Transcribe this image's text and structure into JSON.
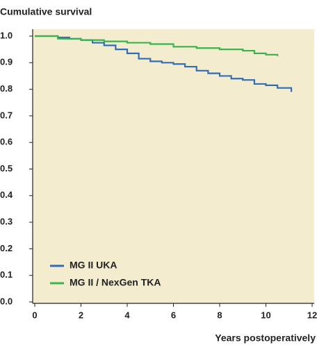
{
  "chart_data": {
    "type": "step",
    "ylabel": "Cumulative survival",
    "xlabel": "Years postoperatively",
    "xlim": [
      0,
      12
    ],
    "xticks": [
      0,
      2,
      4,
      6,
      8,
      10,
      12
    ],
    "ylim": [
      0,
      1
    ],
    "yticks": [
      {
        "value": 0,
        "label": "0.0"
      },
      0.1,
      0.2,
      0.3,
      0.4,
      0.5,
      0.6,
      0.7,
      0.8,
      0.9,
      {
        "value": 1,
        "label": "1.0"
      }
    ],
    "legend": "lower left",
    "background": "#f4ecce",
    "series": [
      {
        "name": "MG II UKA",
        "color": "#2f6db5",
        "x": [
          0,
          1,
          1.5,
          2,
          2.5,
          3,
          3.5,
          4,
          4.5,
          5,
          5.5,
          6,
          6.5,
          7,
          7.5,
          8,
          8.5,
          9,
          9.5,
          10,
          10.5,
          11.1
        ],
        "values": [
          1.0,
          0.995,
          0.99,
          0.985,
          0.975,
          0.965,
          0.95,
          0.935,
          0.915,
          0.905,
          0.9,
          0.895,
          0.885,
          0.87,
          0.86,
          0.85,
          0.84,
          0.835,
          0.82,
          0.815,
          0.805,
          0.79
        ]
      },
      {
        "name": "MG II / NexGen TKA",
        "color": "#3bb34a",
        "x": [
          0,
          1,
          2,
          3,
          4,
          5,
          6,
          7,
          8,
          9,
          9.5,
          10,
          10.5
        ],
        "values": [
          1.0,
          0.99,
          0.985,
          0.98,
          0.975,
          0.97,
          0.96,
          0.955,
          0.95,
          0.945,
          0.935,
          0.93,
          0.925
        ]
      }
    ]
  }
}
